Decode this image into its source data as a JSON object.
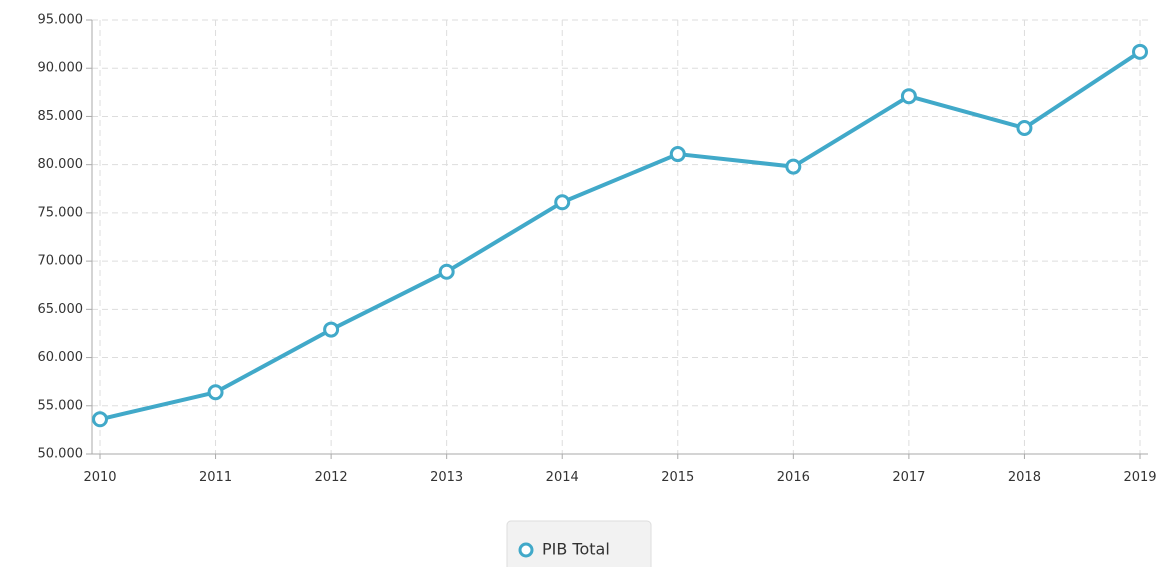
{
  "chart_data": {
    "type": "line",
    "categories": [
      "2010",
      "2011",
      "2012",
      "2013",
      "2014",
      "2015",
      "2016",
      "2017",
      "2018",
      "2019"
    ],
    "series": [
      {
        "name": "PIB Total",
        "color": "#41a9c9",
        "values": [
          53600,
          56400,
          62900,
          68900,
          76100,
          81100,
          79800,
          87100,
          83800,
          91700
        ]
      }
    ],
    "ylim": [
      50000,
      95000
    ],
    "yticks": [
      {
        "value": 50000,
        "label": "50.000"
      },
      {
        "value": 55000,
        "label": "55.000"
      },
      {
        "value": 60000,
        "label": "60.000"
      },
      {
        "value": 65000,
        "label": "65.000"
      },
      {
        "value": 70000,
        "label": "70.000"
      },
      {
        "value": 75000,
        "label": "75.000"
      },
      {
        "value": 80000,
        "label": "80.000"
      },
      {
        "value": 85000,
        "label": "85.000"
      },
      {
        "value": 90000,
        "label": "90.000"
      },
      {
        "value": 95000,
        "label": "95.000"
      }
    ],
    "grid": true,
    "legend": "bottom"
  }
}
